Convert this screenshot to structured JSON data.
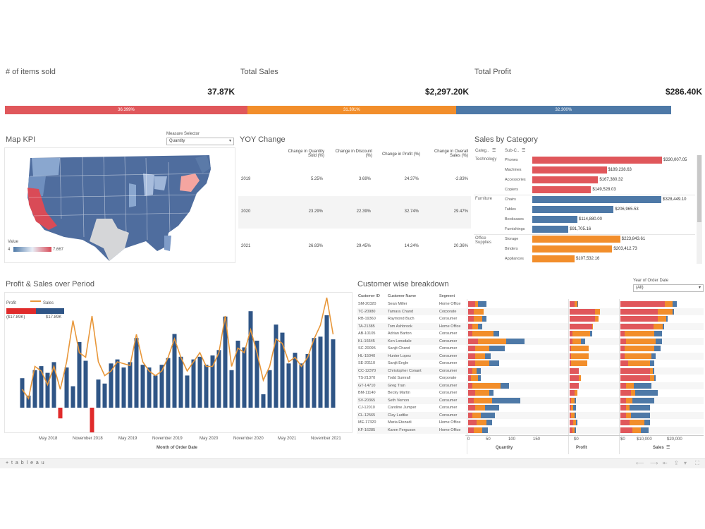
{
  "kpis": [
    {
      "title": "# of items sold",
      "value": "37.87K"
    },
    {
      "title": "Total Sales",
      "value": "$2,297.20K"
    },
    {
      "title": "Total Profit",
      "value": "$286.40K"
    }
  ],
  "share_bar": [
    {
      "label": "36.399%",
      "color": "#e0575b",
      "fraction": 0.36399
    },
    {
      "label": "31.301%",
      "color": "#f28e2b",
      "fraction": 0.31301
    },
    {
      "label": "32.300%",
      "color": "#4e79a7",
      "fraction": 0.323
    }
  ],
  "map": {
    "title": "Map KPI",
    "selector_label": "Measure Selector",
    "selector_value": "Quantity",
    "legend_title": "Value",
    "legend_min": "4",
    "legend_max": "7,667"
  },
  "yoy": {
    "title": "YOY Change",
    "headers": [
      "Change in Quantity Sold (%)",
      "Change in Discount (%)",
      "Change in Profit (%)",
      "Change in Overall Sales (%)"
    ],
    "rows": [
      {
        "year": "2019",
        "values": [
          "5.25%",
          "3.69%",
          "24.37%",
          "-2.83%"
        ]
      },
      {
        "year": "2020",
        "values": [
          "23.29%",
          "22.39%",
          "32.74%",
          "29.47%"
        ]
      },
      {
        "year": "2021",
        "values": [
          "26.83%",
          "29.45%",
          "14.24%",
          "20.36%"
        ]
      }
    ]
  },
  "sales_by_category": {
    "title": "Sales by Category",
    "col_cat": "Categ..",
    "col_sub": "Sub-C..",
    "groups": [
      {
        "category": "Technology",
        "color": "#e0575b",
        "items": [
          {
            "name": "Phones",
            "value": 330007.05,
            "label": "$330,007.05"
          },
          {
            "name": "Machines",
            "value": 189238.63,
            "label": "$189,238.63"
          },
          {
            "name": "Accessories",
            "value": 167380.32,
            "label": "$167,380.32"
          },
          {
            "name": "Copiers",
            "value": 149528.03,
            "label": "$149,528.03"
          }
        ]
      },
      {
        "category": "Furniture",
        "color": "#4e79a7",
        "items": [
          {
            "name": "Chairs",
            "value": 328449.1,
            "label": "$328,449.10"
          },
          {
            "name": "Tables",
            "value": 206965.53,
            "label": "$206,965.53"
          },
          {
            "name": "Bookcases",
            "value": 114880.0,
            "label": "$114,880.00"
          },
          {
            "name": "Furnishings",
            "value": 91705.16,
            "label": "$91,705.16"
          }
        ]
      },
      {
        "category": "Office Supplies",
        "color": "#f28e2b",
        "items": [
          {
            "name": "Storage",
            "value": 223843.61,
            "label": "$223,843.61"
          },
          {
            "name": "Binders",
            "value": 203412.73,
            "label": "$203,412.73"
          },
          {
            "name": "Appliances",
            "value": 107532.16,
            "label": "$107,532.16"
          }
        ]
      }
    ]
  },
  "profit_sales": {
    "title": "Profit & Sales over Period",
    "legend_profit": "Profit",
    "legend_sales": "Sales",
    "legend_min": "($17.89K)",
    "legend_max": "$17.89K",
    "xlabel": "Month of Order Date",
    "x_ticks": [
      "May 2018",
      "November 2018",
      "May 2019",
      "November 2019",
      "May 2020",
      "November 2020",
      "May 2021",
      "November 2021"
    ]
  },
  "chart_data": {
    "type": "bar",
    "xlabel": "Month of Order Date",
    "series": [
      {
        "name": "Profit",
        "values": [
          2.2,
          0.9,
          2.8,
          3.1,
          2.6,
          3.4,
          -0.8,
          3.0,
          1.6,
          4.9,
          3.5,
          -3.0,
          2.1,
          1.8,
          3.3,
          3.6,
          3.0,
          3.4,
          5.2,
          3.2,
          3.0,
          2.4,
          3.2,
          3.7,
          5.5,
          3.8,
          2.4,
          3.6,
          3.8,
          3.2,
          3.9,
          4.3,
          6.8,
          2.8,
          5.0,
          4.5,
          7.2,
          5.0,
          1.0,
          2.8,
          6.2,
          5.6,
          3.3,
          4.1,
          3.3,
          4.0,
          5.2,
          5.3,
          6.9,
          5.1
        ]
      },
      {
        "name": "Sales",
        "values": [
          2.0,
          1.0,
          4.5,
          4.0,
          2.5,
          4.5,
          2.0,
          5.0,
          9.5,
          6.0,
          5.5,
          10.0,
          5.0,
          3.5,
          4.0,
          5.0,
          4.8,
          4.6,
          8.0,
          5.0,
          4.0,
          3.5,
          4.0,
          5.5,
          7.5,
          5.5,
          4.0,
          5.0,
          6.0,
          4.5,
          4.5,
          6.0,
          10.0,
          4.5,
          6.5,
          6.0,
          8.5,
          6.0,
          3.0,
          4.5,
          7.5,
          7.0,
          5.0,
          5.5,
          4.5,
          5.5,
          7.5,
          9.0,
          12.0,
          8.0
        ]
      }
    ]
  },
  "customers": {
    "title": "Customer wise breakdown",
    "year_filter_label": "Year of Order Date",
    "year_filter_value": "(All)",
    "headers": [
      "Customer ID",
      "Customer Name",
      "Segment"
    ],
    "rows": [
      {
        "id": "SM-20320",
        "name": "Sean Miller",
        "segment": "Home Office",
        "q": [
          10,
          4,
          12
        ],
        "p": [
          8,
          4,
          1
        ],
        "s": [
          60,
          10,
          6
        ]
      },
      {
        "id": "TC-20980",
        "name": "Tamara Chand",
        "segment": "Corporate",
        "q": [
          8,
          14,
          0
        ],
        "p": [
          40,
          8,
          0
        ],
        "s": [
          50,
          20,
          2
        ]
      },
      {
        "id": "RB-19360",
        "name": "Raymond Buch",
        "segment": "Consumer",
        "q": [
          8,
          12,
          6
        ],
        "p": [
          40,
          6,
          0
        ],
        "s": [
          50,
          12,
          2
        ]
      },
      {
        "id": "TA-21385",
        "name": "Tom Ashbrook",
        "segment": "Home Office",
        "q": [
          6,
          8,
          6
        ],
        "p": [
          35,
          2,
          0
        ],
        "s": [
          45,
          12,
          2
        ]
      },
      {
        "id": "AB-10105",
        "name": "Adrian Barton",
        "segment": "Consumer",
        "q": [
          6,
          30,
          8
        ],
        "p": [
          4,
          28,
          4
        ],
        "s": [
          6,
          40,
          10
        ]
      },
      {
        "id": "KL-16645",
        "name": "Ken Lonsdale",
        "segment": "Consumer",
        "q": [
          14,
          40,
          26
        ],
        "p": [
          4,
          14,
          6
        ],
        "s": [
          8,
          40,
          8
        ]
      },
      {
        "id": "SC-20095",
        "name": "Sanjit Chand",
        "segment": "Consumer",
        "q": [
          10,
          20,
          22
        ],
        "p": [
          2,
          28,
          0
        ],
        "s": [
          6,
          40,
          8
        ]
      },
      {
        "id": "HL-15040",
        "name": "Hunter Lopez",
        "segment": "Consumer",
        "q": [
          10,
          14,
          8
        ],
        "p": [
          2,
          28,
          0
        ],
        "s": [
          6,
          36,
          6
        ]
      },
      {
        "id": "SE-20110",
        "name": "Sanjit Engle",
        "segment": "Consumer",
        "q": [
          10,
          20,
          14
        ],
        "p": [
          2,
          26,
          0
        ],
        "s": [
          10,
          30,
          6
        ]
      },
      {
        "id": "CC-12370",
        "name": "Christopher Conant",
        "segment": "Consumer",
        "q": [
          6,
          6,
          6
        ],
        "p": [
          14,
          0,
          0
        ],
        "s": [
          40,
          4,
          2
        ]
      },
      {
        "id": "TS-21370",
        "name": "Todd Sumrall",
        "segment": "Corporate",
        "q": [
          4,
          10,
          4
        ],
        "p": [
          14,
          4,
          0
        ],
        "s": [
          40,
          6,
          2
        ]
      },
      {
        "id": "GT-14710",
        "name": "Greg Tran",
        "segment": "Consumer",
        "q": [
          6,
          40,
          12
        ],
        "p": [
          14,
          0,
          0
        ],
        "s": [
          8,
          10,
          24
        ]
      },
      {
        "id": "BM-11140",
        "name": "Becky Martin",
        "segment": "Consumer",
        "q": [
          10,
          20,
          6
        ],
        "p": [
          8,
          4,
          0
        ],
        "s": [
          14,
          6,
          30
        ]
      },
      {
        "id": "SV-20365",
        "name": "Seth Vernon",
        "segment": "Consumer",
        "q": [
          8,
          26,
          40
        ],
        "p": [
          2,
          6,
          2
        ],
        "s": [
          8,
          8,
          30
        ]
      },
      {
        "id": "CJ-12010",
        "name": "Caroline Jumper",
        "segment": "Consumer",
        "q": [
          10,
          14,
          20
        ],
        "p": [
          2,
          4,
          4
        ],
        "s": [
          8,
          4,
          28
        ]
      },
      {
        "id": "CL-12565",
        "name": "Clay Ludtke",
        "segment": "Consumer",
        "q": [
          6,
          12,
          20
        ],
        "p": [
          2,
          6,
          2
        ],
        "s": [
          8,
          6,
          26
        ]
      },
      {
        "id": "ME-17320",
        "name": "Maria Etezadi",
        "segment": "Home Office",
        "q": [
          12,
          14,
          8
        ],
        "p": [
          6,
          4,
          2
        ],
        "s": [
          12,
          20,
          8
        ]
      },
      {
        "id": "KF-16285",
        "name": "Karen Ferguson",
        "segment": "Home Office",
        "q": [
          8,
          12,
          8
        ],
        "p": [
          4,
          4,
          2
        ],
        "s": [
          16,
          12,
          10
        ]
      }
    ],
    "axis_quantity": [
      "0",
      "50",
      "100",
      "150"
    ],
    "axis_profit": [
      "$0"
    ],
    "axis_sales": [
      "$0",
      "$10,000",
      "$20,000"
    ],
    "label_quantity": "Quantity",
    "label_profit": "Profit",
    "label_sales": "Sales"
  },
  "footer": {
    "brand": "+ t a b l e a u"
  },
  "colors": {
    "red": "#e0575b",
    "orange": "#f28e2b",
    "blue": "#4e79a7",
    "navy": "#2f5586",
    "line": "#e8973a",
    "negative": "#e02b2b"
  }
}
